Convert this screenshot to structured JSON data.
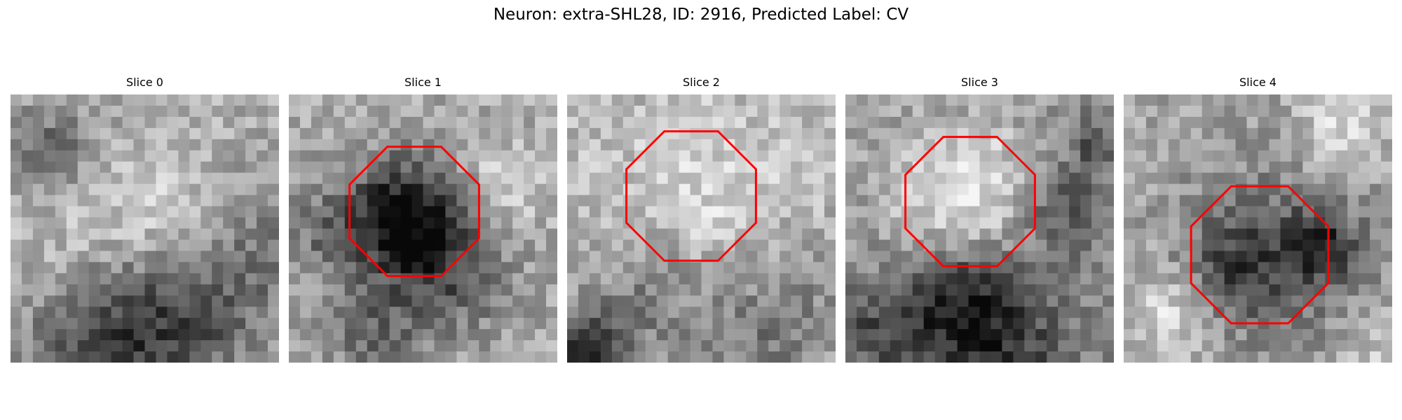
{
  "suptitle": "Neuron: extra-SHL28, ID: 2916, Predicted Label: CV",
  "annotation_color": "#ff0000",
  "slices": [
    {
      "title": "Slice 0",
      "has_outline": false
    },
    {
      "title": "Slice 1",
      "has_outline": true
    },
    {
      "title": "Slice 2",
      "has_outline": true
    },
    {
      "title": "Slice 3",
      "has_outline": true
    },
    {
      "title": "Slice 4",
      "has_outline": true
    }
  ]
}
